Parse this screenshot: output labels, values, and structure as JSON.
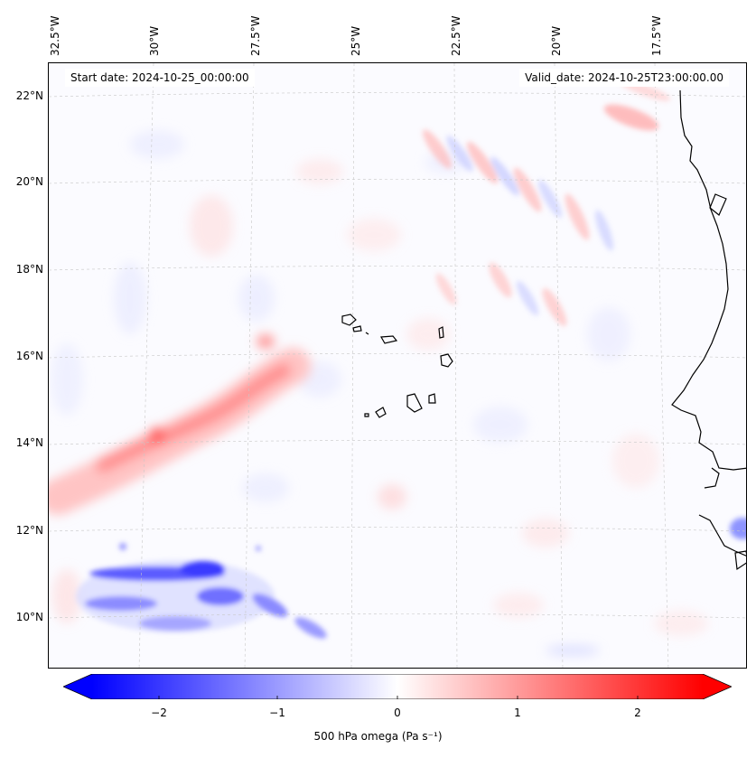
{
  "map": {
    "title_left": "Start date: 2024-10-25_00:00:00",
    "title_right": "Valid_date: 2024-10-25T23:00:00.00",
    "longitude_labels": [
      "32.5°W",
      "30°W",
      "27.5°W",
      "25°W",
      "22.5°W",
      "20°W",
      "17.5°W"
    ],
    "latitude_labels": [
      "22°N",
      "20°N",
      "18°N",
      "16°N",
      "14°N",
      "12°N",
      "10°N"
    ],
    "variable": "500 hPa omega",
    "units": "Pa s⁻¹"
  },
  "colorbar": {
    "label": "500 hPa omega (Pa s⁻¹)",
    "ticks": [
      "−2",
      "−1",
      "0",
      "1",
      "2"
    ],
    "range": [
      -2.6,
      2.6
    ],
    "colormap": "bwr",
    "extend": "both",
    "low_color": "#0000ff",
    "high_color": "#ff0000"
  }
}
